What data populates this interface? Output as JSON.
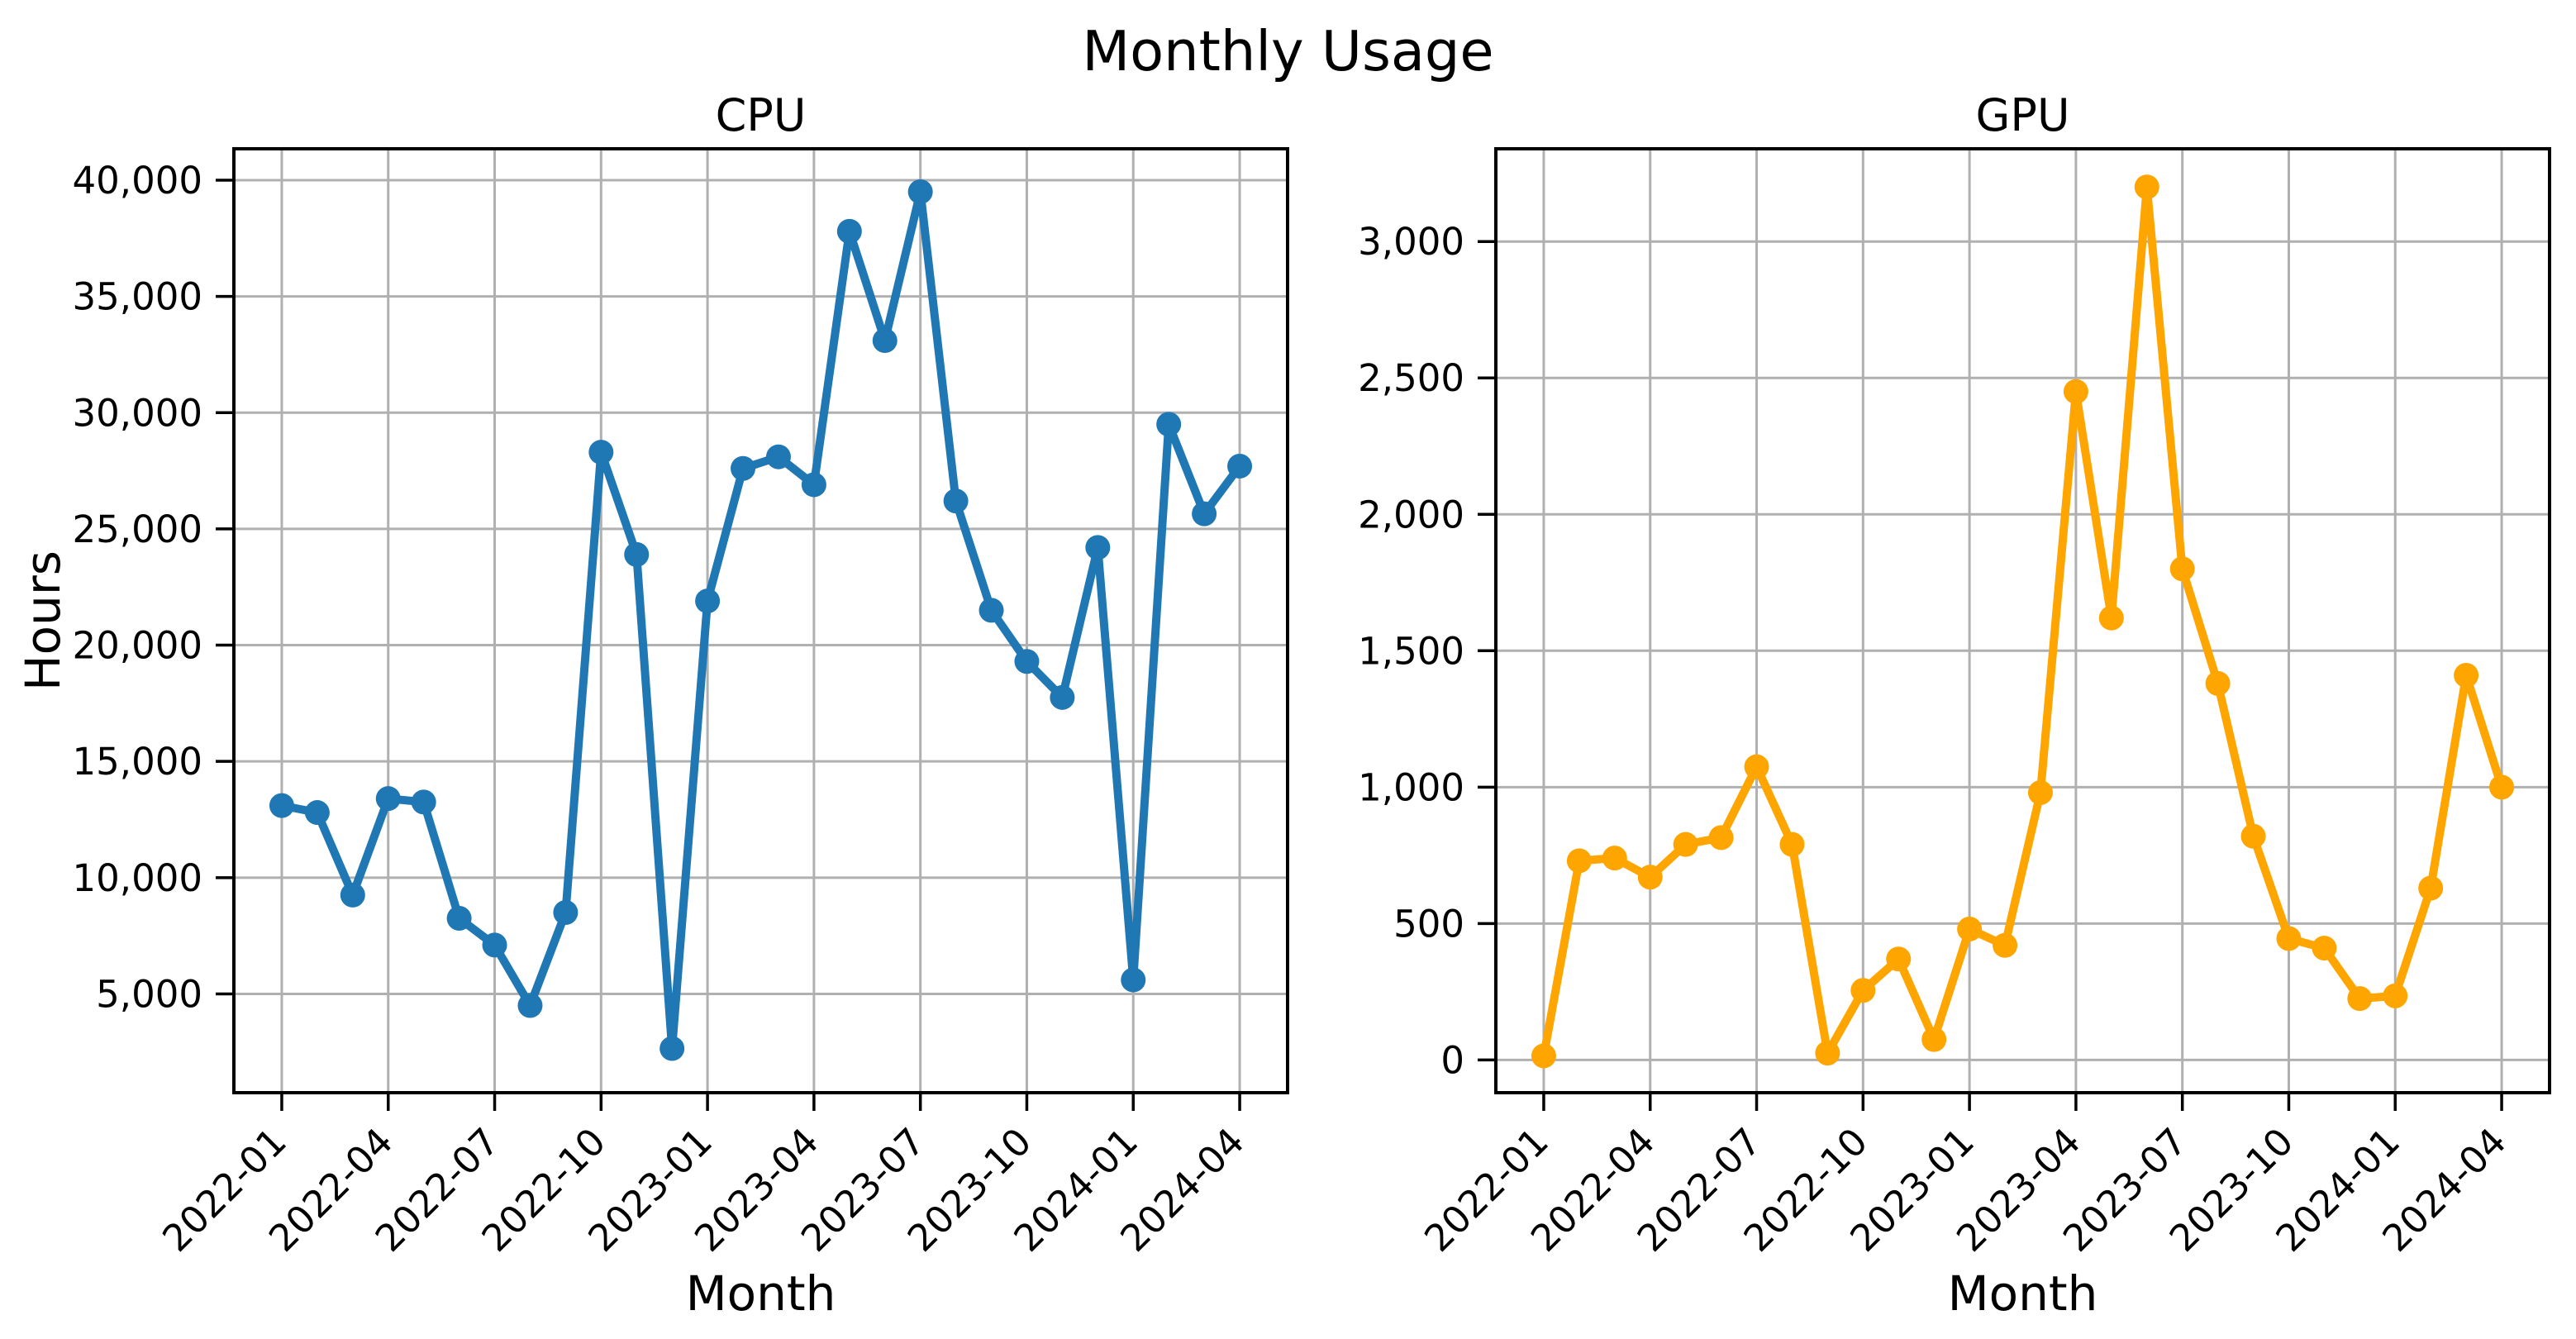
{
  "figure": {
    "suptitle": "Monthly Usage",
    "background_color": "#ffffff",
    "text_color": "#000000",
    "grid_color": "#b0b0b0",
    "spine_color": "#000000"
  },
  "chart_data": [
    {
      "type": "line",
      "title": "CPU",
      "xlabel": "Month",
      "ylabel": "Hours",
      "grid": true,
      "legend_position": "none",
      "marker": "circle",
      "categories": [
        "2022-01",
        "2022-02",
        "2022-03",
        "2022-04",
        "2022-05",
        "2022-06",
        "2022-07",
        "2022-08",
        "2022-09",
        "2022-10",
        "2022-11",
        "2022-12",
        "2023-01",
        "2023-02",
        "2023-03",
        "2023-04",
        "2023-05",
        "2023-06",
        "2023-07",
        "2023-08",
        "2023-09",
        "2023-10",
        "2023-11",
        "2023-12",
        "2024-01",
        "2024-02",
        "2024-03",
        "2024-04"
      ],
      "series": [
        {
          "name": "CPU hours",
          "color": "#1f77b4",
          "values": [
            13100,
            12800,
            9250,
            13400,
            13250,
            8250,
            7100,
            4500,
            8500,
            28300,
            23900,
            2650,
            21900,
            27600,
            28100,
            26900,
            37800,
            33100,
            39500,
            26200,
            21500,
            19300,
            17750,
            24200,
            5600,
            29500,
            25650,
            27700
          ]
        }
      ],
      "x_tick_labels": [
        "2022-01",
        "2022-04",
        "2022-07",
        "2022-10",
        "2023-01",
        "2023-04",
        "2023-07",
        "2023-10",
        "2024-01",
        "2024-04"
      ],
      "y_ticks": [
        5000,
        10000,
        15000,
        20000,
        25000,
        30000,
        35000,
        40000
      ],
      "y_tick_labels": [
        "5,000",
        "10,000",
        "15,000",
        "20,000",
        "25,000",
        "30,000",
        "35,000",
        "40,000"
      ],
      "ylim": [
        750,
        41350
      ],
      "x_margin_units": 1.35
    },
    {
      "type": "line",
      "title": "GPU",
      "xlabel": "Month",
      "ylabel": "",
      "grid": true,
      "legend_position": "none",
      "marker": "circle",
      "categories": [
        "2022-01",
        "2022-02",
        "2022-03",
        "2022-04",
        "2022-05",
        "2022-06",
        "2022-07",
        "2022-08",
        "2022-09",
        "2022-10",
        "2022-11",
        "2022-12",
        "2023-01",
        "2023-02",
        "2023-03",
        "2023-04",
        "2023-05",
        "2023-06",
        "2023-07",
        "2023-08",
        "2023-09",
        "2023-10",
        "2023-11",
        "2023-12",
        "2024-01",
        "2024-02",
        "2024-03",
        "2024-04"
      ],
      "series": [
        {
          "name": "GPU hours",
          "color": "#ffa500",
          "values": [
            15,
            730,
            740,
            670,
            790,
            815,
            1075,
            790,
            25,
            255,
            370,
            75,
            480,
            420,
            980,
            2450,
            1620,
            3200,
            1800,
            1380,
            820,
            445,
            410,
            225,
            235,
            630,
            1410,
            1000
          ]
        }
      ],
      "x_tick_labels": [
        "2022-01",
        "2022-04",
        "2022-07",
        "2022-10",
        "2023-01",
        "2023-04",
        "2023-07",
        "2023-10",
        "2024-01",
        "2024-04"
      ],
      "y_ticks": [
        0,
        500,
        1000,
        1500,
        2000,
        2500,
        3000
      ],
      "y_tick_labels": [
        "0",
        "500",
        "1,000",
        "1,500",
        "2,000",
        "2,500",
        "3,000"
      ],
      "ylim": [
        -120,
        3340
      ],
      "x_margin_units": 1.35
    }
  ]
}
